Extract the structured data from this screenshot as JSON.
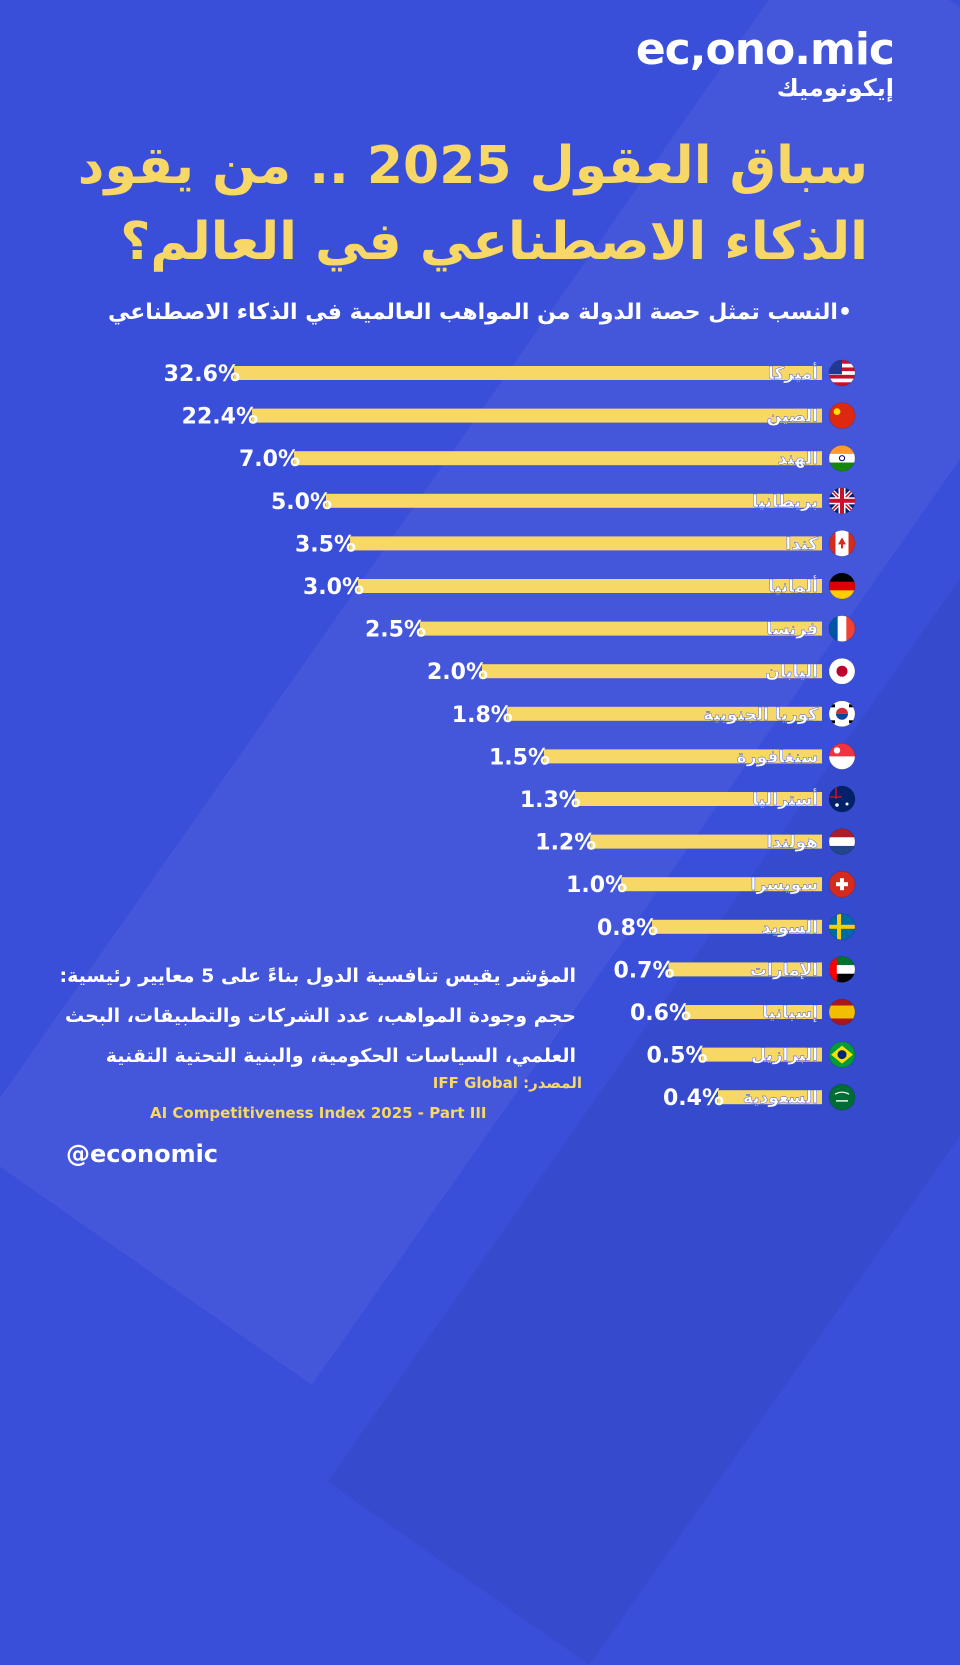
{
  "brand": {
    "logo": "ec,ono.mic",
    "logo_arabic": "إيكونوميك",
    "handle": "@economic"
  },
  "header": {
    "title": "سباق العقول 2025 .. من يقود الذكاء الاصطناعي في العالم؟",
    "subtitle": "•النسب تمثل حصة الدولة من المواهب العالمية في الذكاء الاصطناعي"
  },
  "note": "المؤشر يقيس تنافسية الدول بناءً على 5 معايير رئيسية: حجم وجودة المواهب، عدد الشركات والتطبيقات، البحث العلمي، السياسات الحكومية، والبنية التحتية التقنية",
  "source": {
    "label": "المصدر: IFF Global",
    "report": "AI Competitiveness Index 2025 - Part III"
  },
  "colors": {
    "background": "#3a4fd9",
    "bar": "#f7d766",
    "label_text": "#ffffff",
    "value_text": "#ffffff"
  },
  "chart_data": {
    "type": "bar",
    "orientation": "horizontal",
    "categories": [
      "أميركا",
      "الصين",
      "الهند",
      "بريطانيا",
      "كندا",
      "ألمانيا",
      "فرنسا",
      "اليابان",
      "كوريا الجنوبية",
      "سنغافورة",
      "أستراليا",
      "هولندا",
      "سويسرا",
      "السويد",
      "الإمارات",
      "إسبانيا",
      "البرازيل",
      "السعودية"
    ],
    "values": [
      32.6,
      22.4,
      7.0,
      5.0,
      3.5,
      3.0,
      2.5,
      2.0,
      1.8,
      1.5,
      1.3,
      1.2,
      1.0,
      0.8,
      0.7,
      0.6,
      0.5,
      0.4
    ],
    "value_labels": [
      "32.6%",
      "22.4%",
      "7.0%",
      "5.0%",
      "3.5%",
      "3.0%",
      "2.5%",
      "2.0%",
      "1.8%",
      "1.5%",
      "1.3%",
      "1.2%",
      "1.0%",
      "0.8%",
      "0.7%",
      "0.6%",
      "0.5%",
      "0.4%"
    ],
    "flags": [
      "us",
      "cn",
      "in",
      "gb",
      "ca",
      "de",
      "fr",
      "jp",
      "kr",
      "sg",
      "au",
      "nl",
      "ch",
      "se",
      "ae",
      "es",
      "br",
      "sa"
    ],
    "title": "سباق العقول 2025 .. من يقود الذكاء الاصطناعي في العالم؟",
    "unit": "%"
  }
}
